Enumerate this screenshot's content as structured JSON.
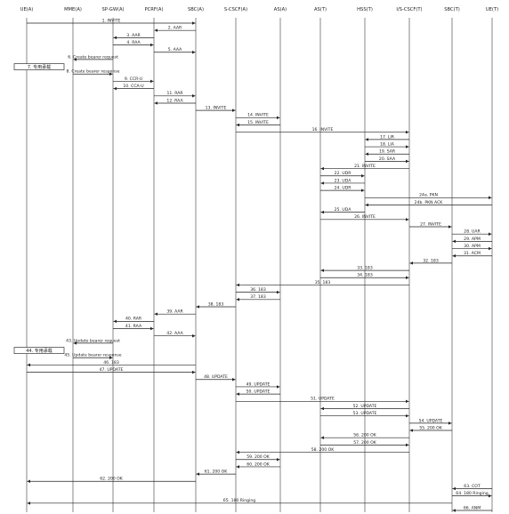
{
  "lifelines": [
    {
      "id": "ue",
      "label": "UE(A)"
    },
    {
      "id": "mme",
      "label": "MME(A)"
    },
    {
      "id": "sgw",
      "label": "SP-GW(A)"
    },
    {
      "id": "pcrf",
      "label": "PCRF(A)"
    },
    {
      "id": "sbc",
      "label": "SBC(A)"
    },
    {
      "id": "scscf",
      "label": "S-CSCF(A)"
    },
    {
      "id": "as",
      "label": "AS(A)"
    },
    {
      "id": "ast",
      "label": "AS(T)"
    },
    {
      "id": "hss",
      "label": "HSS(T)"
    },
    {
      "id": "icscf",
      "label": "I/S-CSCF(T)"
    },
    {
      "id": "sbct",
      "label": "SBC(T)"
    },
    {
      "id": "uet",
      "label": "UE(T)"
    }
  ],
  "notes": [
    {
      "text": "7. 专用承载",
      "lane": "ue",
      "row": 7
    },
    {
      "text": "44. 专用承载",
      "lane": "ue",
      "row": 44
    }
  ],
  "messages": [
    {
      "label": "1. INVITE",
      "from": "ue",
      "to": "sbc"
    },
    {
      "label": "2. AAR",
      "from": "sbc",
      "to": "pcrf"
    },
    {
      "label": "3. AAR",
      "from": "pcrf",
      "to": "sgw"
    },
    {
      "label": "4. RAA",
      "from": "sgw",
      "to": "pcrf"
    },
    {
      "label": "5. AAA",
      "from": "pcrf",
      "to": "sbc"
    },
    {
      "label": "6. Create bearer request",
      "from": "sgw",
      "to": "mme"
    },
    {
      "label": "8. Create bearer response",
      "from": "mme",
      "to": "sgw"
    },
    {
      "label": "9. CCR-U",
      "from": "sgw",
      "to": "pcrf"
    },
    {
      "label": "10. CCA-U",
      "from": "pcrf",
      "to": "sgw"
    },
    {
      "label": "11. RAR",
      "from": "pcrf",
      "to": "sbc"
    },
    {
      "label": "12. RAA",
      "from": "sbc",
      "to": "pcrf"
    },
    {
      "label": "13. INVITE",
      "from": "sbc",
      "to": "scscf"
    },
    {
      "label": "14. INVITE",
      "from": "scscf",
      "to": "as"
    },
    {
      "label": "15. INVITE",
      "from": "as",
      "to": "scscf"
    },
    {
      "label": "16. INVITE",
      "from": "scscf",
      "to": "icscf"
    },
    {
      "label": "17. LIR",
      "from": "icscf",
      "to": "hss"
    },
    {
      "label": "18. LIA",
      "from": "hss",
      "to": "icscf"
    },
    {
      "label": "19. SAR",
      "from": "icscf",
      "to": "hss"
    },
    {
      "label": "20. SAA",
      "from": "hss",
      "to": "icscf"
    },
    {
      "label": "21. INVITE",
      "from": "icscf",
      "to": "ast"
    },
    {
      "label": "22. UDR",
      "from": "ast",
      "to": "hss"
    },
    {
      "label": "23. UDA",
      "from": "hss",
      "to": "ast"
    },
    {
      "label": "24. UDR",
      "from": "ast",
      "to": "hss"
    },
    {
      "label": "24a. PKN",
      "from": "hss",
      "to": "uet"
    },
    {
      "label": "24b. PKN ACK",
      "from": "uet",
      "to": "hss"
    },
    {
      "label": "25. UDA",
      "from": "hss",
      "to": "ast"
    },
    {
      "label": "26. INVITE",
      "from": "ast",
      "to": "icscf"
    },
    {
      "label": "27. INVITE",
      "from": "icscf",
      "to": "sbct"
    },
    {
      "label": "28. UAR",
      "from": "sbct",
      "to": "uet"
    },
    {
      "label": "29. APM",
      "from": "uet",
      "to": "sbct"
    },
    {
      "label": "30. APM",
      "from": "sbct",
      "to": "uet"
    },
    {
      "label": "31. ACM",
      "from": "uet",
      "to": "sbct"
    },
    {
      "label": "32. 183",
      "from": "sbct",
      "to": "icscf"
    },
    {
      "label": "33. 183",
      "from": "icscf",
      "to": "ast"
    },
    {
      "label": "34. 183",
      "from": "ast",
      "to": "icscf"
    },
    {
      "label": "35. 183",
      "from": "icscf",
      "to": "scscf"
    },
    {
      "label": "36. 183",
      "from": "scscf",
      "to": "as"
    },
    {
      "label": "37. 183",
      "from": "as",
      "to": "scscf"
    },
    {
      "label": "38. 183",
      "from": "scscf",
      "to": "sbc"
    },
    {
      "label": "39. AAR",
      "from": "sbc",
      "to": "pcrf"
    },
    {
      "label": "40. RAR",
      "from": "pcrf",
      "to": "sgw"
    },
    {
      "label": "41. RAA",
      "from": "sgw",
      "to": "pcrf"
    },
    {
      "label": "42. AAA",
      "from": "pcrf",
      "to": "sbc"
    },
    {
      "label": "43. Update bearer request",
      "from": "sgw",
      "to": "mme"
    },
    {
      "label": "45. Update bearer response",
      "from": "mme",
      "to": "sgw"
    },
    {
      "label": "46. 183",
      "from": "sbc",
      "to": "ue"
    },
    {
      "label": "47. UPDATE",
      "from": "ue",
      "to": "sbc"
    },
    {
      "label": "48. UPDATE",
      "from": "sbc",
      "to": "scscf"
    },
    {
      "label": "49. UPDATE",
      "from": "scscf",
      "to": "as"
    },
    {
      "label": "50. UPDATE",
      "from": "as",
      "to": "scscf"
    },
    {
      "label": "51. UPDATE",
      "from": "scscf",
      "to": "icscf"
    },
    {
      "label": "52. UPDATE",
      "from": "icscf",
      "to": "ast"
    },
    {
      "label": "53. UPDATE",
      "from": "ast",
      "to": "icscf"
    },
    {
      "label": "54. UPDATE",
      "from": "icscf",
      "to": "sbct"
    },
    {
      "label": "55. 200 OK",
      "from": "sbct",
      "to": "icscf"
    },
    {
      "label": "56. 200 OK",
      "from": "icscf",
      "to": "ast"
    },
    {
      "label": "57. 200 OK",
      "from": "ast",
      "to": "icscf"
    },
    {
      "label": "58. 200 OK",
      "from": "icscf",
      "to": "scscf"
    },
    {
      "label": "59. 200 OK",
      "from": "scscf",
      "to": "as"
    },
    {
      "label": "60. 200 OK",
      "from": "as",
      "to": "scscf"
    },
    {
      "label": "61. 200 OK",
      "from": "scscf",
      "to": "sbc"
    },
    {
      "label": "62. 200 OK",
      "from": "sbc",
      "to": "ue"
    },
    {
      "label": "63. COT",
      "from": "uet",
      "to": "sbct"
    },
    {
      "label": "64. 180 Ringing",
      "from": "sbct",
      "to": "uet"
    },
    {
      "label": "65. 180 Ringing",
      "from": "sbct",
      "to": "ue"
    },
    {
      "label": "66. ANM",
      "from": "uet",
      "to": "sbct"
    }
  ]
}
